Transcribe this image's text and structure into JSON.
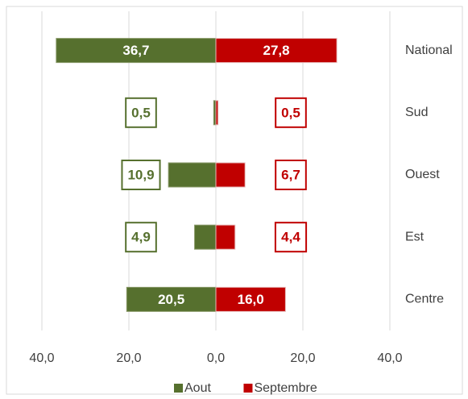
{
  "chart_data": {
    "type": "bar",
    "categories": [
      "National",
      "Sud",
      "Ouest",
      "Est",
      "Centre"
    ],
    "series": [
      {
        "name": "Aout",
        "color": "#56702e",
        "values": [
          -36.7,
          -0.5,
          -10.9,
          -4.9,
          -20.5
        ],
        "value_labels": [
          "36,7",
          "0,5",
          "10,9",
          "4,9",
          "20,5"
        ]
      },
      {
        "name": "Septembre",
        "color": "#c00000",
        "values": [
          27.8,
          0.5,
          6.7,
          4.4,
          16.0
        ],
        "value_labels": [
          "27,8",
          "0,5",
          "6,7",
          "4,4",
          "16,0"
        ]
      }
    ],
    "xlim": [
      -40,
      40
    ],
    "xticks": [
      {
        "value": -40,
        "label": "40,0"
      },
      {
        "value": -20,
        "label": "20,0"
      },
      {
        "value": 0,
        "label": "0,0"
      },
      {
        "value": 20,
        "label": "20,0"
      },
      {
        "value": 40,
        "label": "40,0"
      }
    ],
    "grid": true,
    "legend": "bottom"
  }
}
